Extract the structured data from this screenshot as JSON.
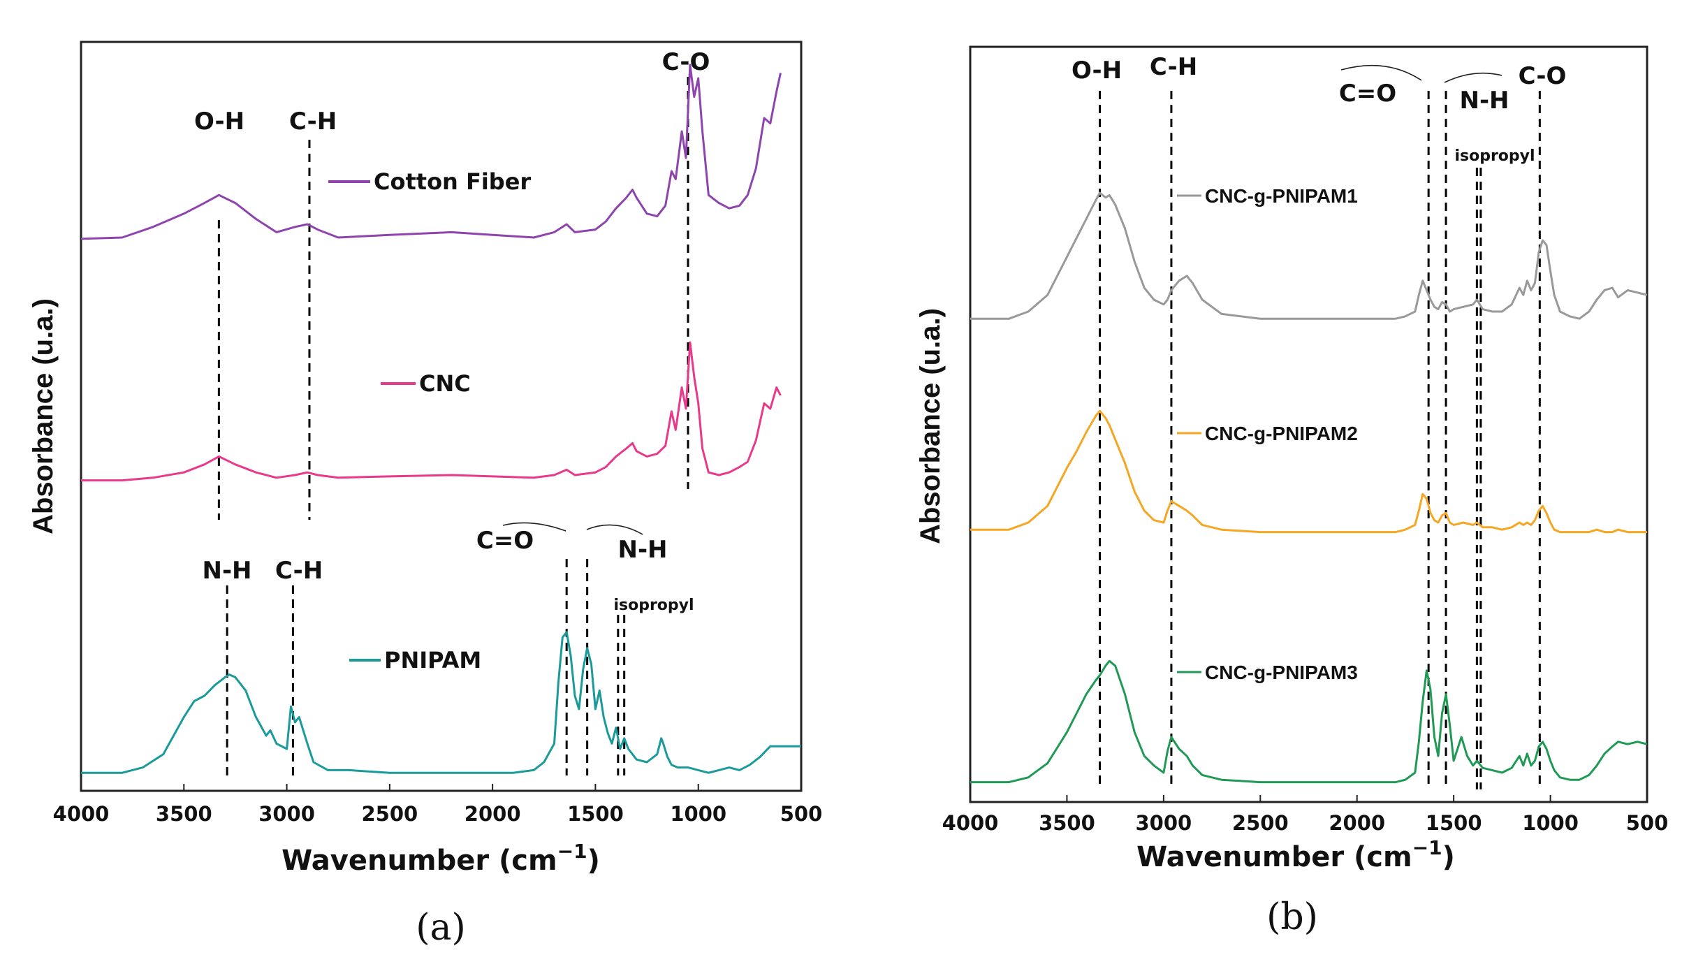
{
  "chart_data": [
    {
      "type": "line",
      "panel_label": "(a)",
      "xlabel": "Wavenumber (cm",
      "xlabel_exp": "−1",
      "xlabel_close": ")",
      "ylabel": "Absorbance (u.a.)",
      "xlim": [
        4000,
        500
      ],
      "xticks": [
        4000,
        3500,
        3000,
        2500,
        2000,
        1500,
        1000,
        500
      ],
      "series": [
        {
          "name": "Cotton Fiber",
          "color": "#8e44ad",
          "x": [
            4000,
            3800,
            3650,
            3500,
            3400,
            3330,
            3250,
            3150,
            3050,
            2960,
            2900,
            2850,
            2750,
            2500,
            2200,
            2000,
            1800,
            1700,
            1640,
            1600,
            1500,
            1450,
            1400,
            1350,
            1320,
            1300,
            1250,
            1200,
            1160,
            1130,
            1110,
            1080,
            1060,
            1040,
            1020,
            1000,
            980,
            950,
            900,
            850,
            800,
            760,
            720,
            680,
            650,
            620,
            600
          ],
          "y": [
            0.195,
            0.2,
            0.24,
            0.29,
            0.33,
            0.36,
            0.33,
            0.27,
            0.22,
            0.24,
            0.25,
            0.23,
            0.2,
            0.21,
            0.22,
            0.21,
            0.2,
            0.22,
            0.25,
            0.22,
            0.23,
            0.26,
            0.31,
            0.35,
            0.38,
            0.35,
            0.29,
            0.28,
            0.32,
            0.45,
            0.42,
            0.6,
            0.5,
            0.85,
            0.73,
            0.8,
            0.6,
            0.36,
            0.33,
            0.31,
            0.32,
            0.36,
            0.46,
            0.65,
            0.63,
            0.75,
            0.82
          ]
        },
        {
          "name": "CNC",
          "color": "#e8398a",
          "x": [
            4000,
            3800,
            3650,
            3500,
            3400,
            3330,
            3250,
            3150,
            3050,
            2960,
            2900,
            2850,
            2750,
            2500,
            2200,
            2000,
            1800,
            1700,
            1640,
            1600,
            1500,
            1450,
            1400,
            1350,
            1320,
            1300,
            1250,
            1200,
            1160,
            1130,
            1110,
            1080,
            1060,
            1040,
            1020,
            1000,
            980,
            950,
            900,
            850,
            800,
            760,
            720,
            680,
            650,
            620,
            600
          ],
          "y": [
            0.03,
            0.03,
            0.04,
            0.06,
            0.09,
            0.12,
            0.09,
            0.06,
            0.04,
            0.05,
            0.06,
            0.05,
            0.04,
            0.045,
            0.05,
            0.045,
            0.04,
            0.05,
            0.07,
            0.05,
            0.06,
            0.08,
            0.12,
            0.15,
            0.17,
            0.14,
            0.12,
            0.13,
            0.16,
            0.29,
            0.22,
            0.38,
            0.3,
            0.55,
            0.42,
            0.32,
            0.15,
            0.06,
            0.05,
            0.06,
            0.08,
            0.1,
            0.18,
            0.32,
            0.3,
            0.38,
            0.35
          ]
        },
        {
          "name": "PNIPAM",
          "color": "#1a9a9a",
          "x": [
            4000,
            3800,
            3700,
            3600,
            3500,
            3450,
            3400,
            3350,
            3300,
            3280,
            3250,
            3200,
            3150,
            3100,
            3080,
            3050,
            3000,
            2980,
            2960,
            2940,
            2920,
            2900,
            2870,
            2800,
            2700,
            2500,
            2300,
            2100,
            1900,
            1800,
            1750,
            1700,
            1680,
            1660,
            1640,
            1620,
            1600,
            1580,
            1560,
            1540,
            1520,
            1500,
            1480,
            1460,
            1440,
            1420,
            1400,
            1380,
            1360,
            1340,
            1300,
            1250,
            1200,
            1180,
            1170,
            1150,
            1130,
            1100,
            1050,
            1000,
            950,
            900,
            850,
            800,
            750,
            700,
            650,
            600,
            550,
            500
          ],
          "y": [
            0.01,
            0.01,
            0.03,
            0.08,
            0.22,
            0.28,
            0.3,
            0.34,
            0.37,
            0.38,
            0.37,
            0.32,
            0.22,
            0.15,
            0.17,
            0.12,
            0.1,
            0.26,
            0.2,
            0.22,
            0.17,
            0.12,
            0.05,
            0.02,
            0.02,
            0.01,
            0.01,
            0.01,
            0.01,
            0.02,
            0.05,
            0.12,
            0.35,
            0.52,
            0.54,
            0.45,
            0.3,
            0.25,
            0.4,
            0.48,
            0.42,
            0.25,
            0.32,
            0.22,
            0.16,
            0.12,
            0.18,
            0.1,
            0.14,
            0.1,
            0.06,
            0.05,
            0.08,
            0.14,
            0.12,
            0.07,
            0.04,
            0.03,
            0.03,
            0.02,
            0.01,
            0.02,
            0.03,
            0.02,
            0.04,
            0.07,
            0.11,
            0.11,
            0.11,
            0.11
          ]
        }
      ],
      "annotations": [
        {
          "label": "O-H",
          "x": 3330
        },
        {
          "label": "C-H",
          "x": 2890
        },
        {
          "label": "C-O",
          "x": 1050
        },
        {
          "label": "N-H",
          "x": 3290
        },
        {
          "label": "C-H",
          "x": 2970
        },
        {
          "label": "C=O",
          "x": 1640
        },
        {
          "label": "N-H",
          "x": 1540
        },
        {
          "label": "isopropyl",
          "x": 1375
        }
      ]
    },
    {
      "type": "line",
      "panel_label": "(b)",
      "xlabel": "Wavenumber (cm",
      "xlabel_exp": "−1",
      "xlabel_close": ")",
      "ylabel": "Absorbance (u.a.)",
      "xlim": [
        4000,
        500
      ],
      "xticks": [
        4000,
        3500,
        3000,
        2500,
        2000,
        1500,
        1000,
        500
      ],
      "series": [
        {
          "name": "CNC-g-PNIPAM1",
          "color": "#999999",
          "x": [
            4000,
            3800,
            3700,
            3600,
            3500,
            3450,
            3400,
            3350,
            3330,
            3300,
            3280,
            3250,
            3200,
            3150,
            3100,
            3050,
            3000,
            2980,
            2960,
            2920,
            2880,
            2850,
            2800,
            2700,
            2500,
            2300,
            2100,
            1900,
            1800,
            1750,
            1700,
            1680,
            1660,
            1640,
            1620,
            1600,
            1580,
            1560,
            1540,
            1520,
            1500,
            1450,
            1400,
            1380,
            1350,
            1300,
            1250,
            1200,
            1160,
            1140,
            1120,
            1100,
            1080,
            1060,
            1040,
            1020,
            1000,
            980,
            950,
            900,
            850,
            800,
            760,
            720,
            680,
            650,
            600,
            550,
            500
          ],
          "y": [
            0.02,
            0.02,
            0.05,
            0.12,
            0.28,
            0.36,
            0.44,
            0.52,
            0.55,
            0.53,
            0.54,
            0.5,
            0.4,
            0.26,
            0.15,
            0.1,
            0.08,
            0.1,
            0.14,
            0.18,
            0.2,
            0.17,
            0.1,
            0.04,
            0.02,
            0.02,
            0.02,
            0.02,
            0.02,
            0.03,
            0.05,
            0.12,
            0.18,
            0.14,
            0.1,
            0.07,
            0.06,
            0.09,
            0.08,
            0.05,
            0.06,
            0.07,
            0.08,
            0.1,
            0.06,
            0.05,
            0.05,
            0.08,
            0.15,
            0.12,
            0.18,
            0.14,
            0.17,
            0.3,
            0.35,
            0.33,
            0.22,
            0.12,
            0.05,
            0.03,
            0.02,
            0.05,
            0.1,
            0.14,
            0.15,
            0.11,
            0.14,
            0.13,
            0.12
          ]
        },
        {
          "name": "CNC-g-PNIPAM2",
          "color": "#f5a623",
          "x": [
            4000,
            3800,
            3700,
            3600,
            3500,
            3450,
            3400,
            3350,
            3330,
            3300,
            3280,
            3250,
            3200,
            3150,
            3100,
            3050,
            3000,
            2980,
            2960,
            2920,
            2880,
            2850,
            2800,
            2700,
            2500,
            2300,
            2100,
            1900,
            1800,
            1750,
            1700,
            1680,
            1660,
            1640,
            1620,
            1600,
            1580,
            1560,
            1540,
            1520,
            1500,
            1450,
            1400,
            1380,
            1350,
            1300,
            1250,
            1200,
            1160,
            1140,
            1120,
            1100,
            1080,
            1060,
            1040,
            1020,
            1000,
            980,
            950,
            900,
            850,
            800,
            760,
            720,
            680,
            650,
            600,
            550,
            500
          ],
          "y": [
            0.02,
            0.02,
            0.05,
            0.12,
            0.28,
            0.35,
            0.43,
            0.5,
            0.52,
            0.49,
            0.46,
            0.4,
            0.3,
            0.18,
            0.1,
            0.06,
            0.05,
            0.1,
            0.14,
            0.12,
            0.1,
            0.08,
            0.04,
            0.02,
            0.01,
            0.01,
            0.01,
            0.01,
            0.01,
            0.02,
            0.04,
            0.1,
            0.17,
            0.15,
            0.09,
            0.06,
            0.05,
            0.08,
            0.09,
            0.05,
            0.04,
            0.05,
            0.04,
            0.05,
            0.03,
            0.03,
            0.02,
            0.03,
            0.05,
            0.04,
            0.05,
            0.04,
            0.06,
            0.1,
            0.12,
            0.09,
            0.05,
            0.02,
            0.01,
            0.01,
            0.01,
            0.01,
            0.02,
            0.01,
            0.01,
            0.02,
            0.01,
            0.01,
            0.01
          ]
        },
        {
          "name": "CNC-g-PNIPAM3",
          "color": "#1f9a55",
          "x": [
            4000,
            3800,
            3700,
            3600,
            3500,
            3450,
            3400,
            3350,
            3330,
            3300,
            3280,
            3250,
            3200,
            3150,
            3100,
            3050,
            3000,
            2980,
            2960,
            2920,
            2880,
            2850,
            2800,
            2700,
            2500,
            2300,
            2100,
            1900,
            1800,
            1750,
            1700,
            1680,
            1660,
            1640,
            1620,
            1600,
            1580,
            1560,
            1540,
            1520,
            1500,
            1460,
            1430,
            1400,
            1380,
            1350,
            1300,
            1250,
            1200,
            1160,
            1140,
            1120,
            1100,
            1080,
            1060,
            1040,
            1020,
            1000,
            980,
            950,
            900,
            850,
            800,
            760,
            720,
            680,
            650,
            600,
            550,
            500
          ],
          "y": [
            0.01,
            0.01,
            0.03,
            0.09,
            0.22,
            0.3,
            0.38,
            0.44,
            0.46,
            0.5,
            0.52,
            0.5,
            0.38,
            0.22,
            0.12,
            0.08,
            0.05,
            0.14,
            0.2,
            0.15,
            0.12,
            0.08,
            0.04,
            0.02,
            0.01,
            0.01,
            0.01,
            0.01,
            0.01,
            0.02,
            0.05,
            0.18,
            0.35,
            0.48,
            0.4,
            0.2,
            0.12,
            0.3,
            0.38,
            0.25,
            0.1,
            0.2,
            0.12,
            0.08,
            0.1,
            0.07,
            0.06,
            0.05,
            0.07,
            0.12,
            0.08,
            0.13,
            0.08,
            0.1,
            0.16,
            0.18,
            0.15,
            0.1,
            0.06,
            0.03,
            0.02,
            0.02,
            0.04,
            0.08,
            0.13,
            0.16,
            0.18,
            0.17,
            0.18,
            0.17
          ]
        }
      ],
      "annotations": [
        {
          "label": "O-H",
          "x": 3330
        },
        {
          "label": "C-H",
          "x": 2960
        },
        {
          "label": "C=O",
          "x": 1640
        },
        {
          "label": "N-H",
          "x": 1550
        },
        {
          "label": "C-O",
          "x": 1055
        },
        {
          "label": "isopropyl",
          "x": 1370
        }
      ]
    }
  ]
}
